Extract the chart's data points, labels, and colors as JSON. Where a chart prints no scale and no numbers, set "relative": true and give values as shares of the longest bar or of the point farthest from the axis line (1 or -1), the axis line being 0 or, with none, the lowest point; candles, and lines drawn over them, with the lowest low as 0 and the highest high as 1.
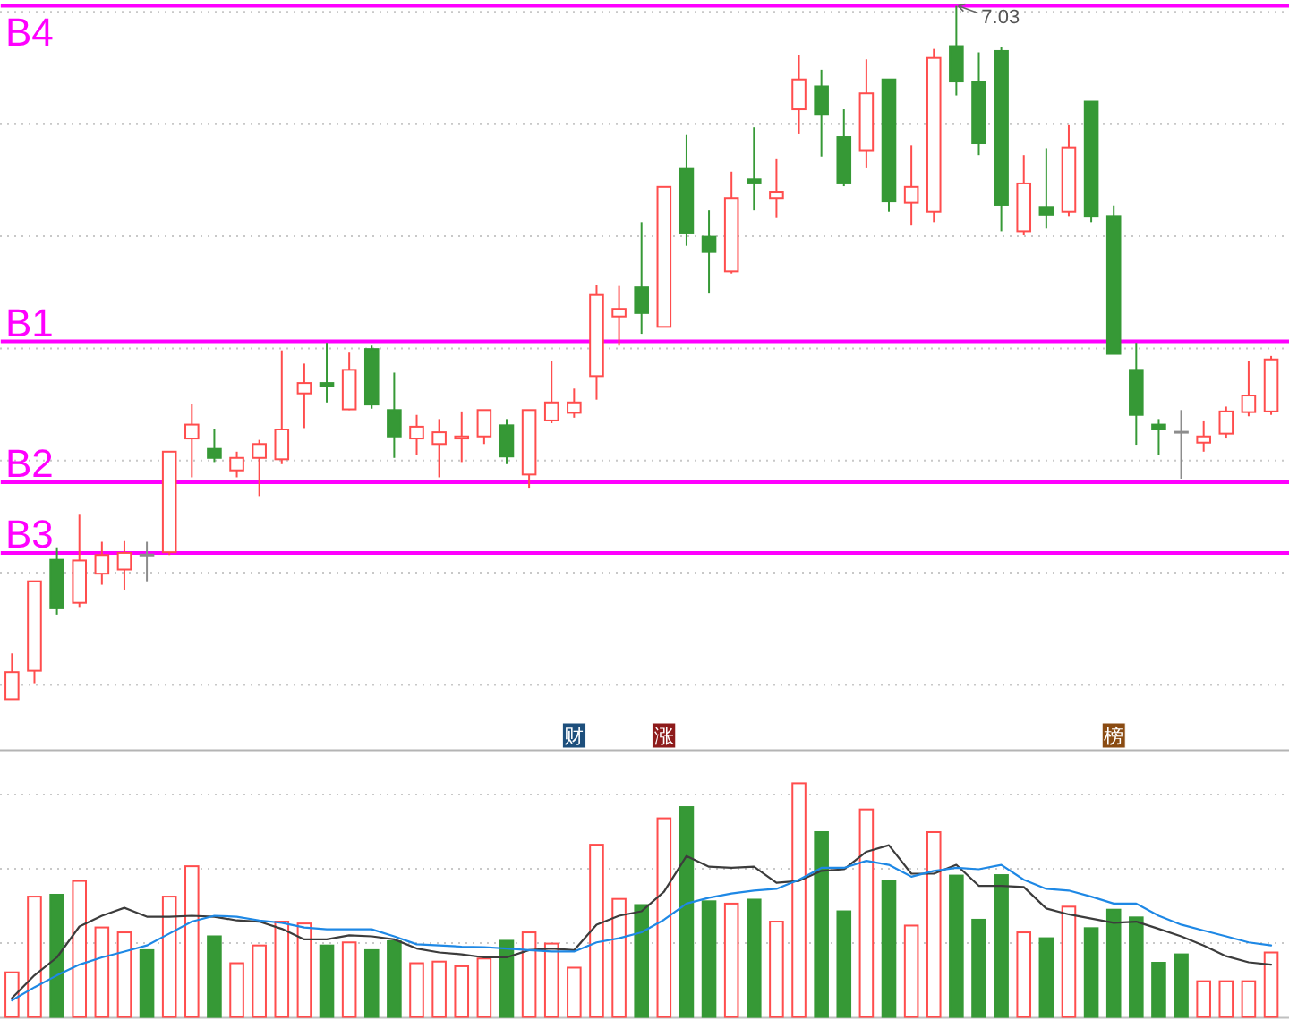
{
  "chart_data": [
    {
      "type": "candlestick",
      "relative": true,
      "grid": "y",
      "categories": [
        null,
        null,
        null,
        null,
        null,
        null,
        null,
        null,
        null,
        null,
        null,
        null,
        null,
        null,
        null,
        null,
        null,
        null,
        null,
        null,
        null,
        null,
        null,
        null,
        null,
        null,
        null,
        null,
        null,
        null,
        null,
        null,
        null,
        null,
        null,
        null,
        null,
        null,
        null,
        null,
        null,
        null,
        null,
        null,
        null,
        null,
        null,
        null,
        null,
        null,
        null,
        null,
        null,
        null,
        null,
        null,
        null
      ],
      "ohlc": [
        [
          0,
          0.066,
          0,
          0.039
        ],
        [
          0.041,
          0.17,
          0.023,
          0.17
        ],
        [
          0.201,
          0.219,
          0.122,
          0.131
        ],
        [
          0.139,
          0.266,
          0.133,
          0.2
        ],
        [
          0.181,
          0.227,
          0.165,
          0.208
        ],
        [
          0.187,
          0.228,
          0.158,
          0.211
        ],
        [
          0.208,
          0.227,
          0.17,
          0.208
        ],
        [
          0.212,
          0.357,
          0.208,
          0.357
        ],
        [
          0.376,
          0.426,
          0.32,
          0.396
        ],
        [
          0.361,
          0.389,
          0.342,
          0.348
        ],
        [
          0.33,
          0.357,
          0.32,
          0.348
        ],
        [
          0.348,
          0.374,
          0.293,
          0.368
        ],
        [
          0.346,
          0.503,
          0.339,
          0.389
        ],
        [
          0.441,
          0.484,
          0.391,
          0.456
        ],
        [
          0.456,
          0.514,
          0.428,
          0.451
        ],
        [
          0.418,
          0.501,
          0.417,
          0.475
        ],
        [
          0.505,
          0.51,
          0.419,
          0.425
        ],
        [
          0.417,
          0.471,
          0.348,
          0.379
        ],
        [
          0.376,
          0.41,
          0.352,
          0.393
        ],
        [
          0.368,
          0.404,
          0.32,
          0.385
        ],
        [
          0.376,
          0.415,
          0.342,
          0.379
        ],
        [
          0.379,
          0.417,
          0.368,
          0.417
        ],
        [
          0.395,
          0.404,
          0.339,
          0.35
        ],
        [
          0.324,
          0.417,
          0.305,
          0.417
        ],
        [
          0.402,
          0.488,
          0.398,
          0.428
        ],
        [
          0.413,
          0.448,
          0.406,
          0.428
        ],
        [
          0.466,
          0.597,
          0.432,
          0.583
        ],
        [
          0.552,
          0.596,
          0.51,
          0.563
        ],
        [
          0.594,
          0.688,
          0.527,
          0.557
        ],
        [
          0.537,
          0.739,
          0.537,
          0.739
        ],
        [
          0.765,
          0.814,
          0.654,
          0.673
        ],
        [
          0.667,
          0.705,
          0.585,
          0.645
        ],
        [
          0.617,
          0.761,
          0.614,
          0.723
        ],
        [
          0.75,
          0.825,
          0.705,
          0.744
        ],
        [
          0.723,
          0.779,
          0.694,
          0.731
        ],
        [
          0.851,
          0.929,
          0.815,
          0.894
        ],
        [
          0.884,
          0.908,
          0.783,
          0.843
        ],
        [
          0.811,
          0.851,
          0.74,
          0.744
        ],
        [
          0.791,
          0.923,
          0.766,
          0.874
        ],
        [
          0.894,
          0.894,
          0.703,
          0.718
        ],
        [
          0.716,
          0.799,
          0.683,
          0.739
        ],
        [
          0.703,
          0.938,
          0.688,
          0.925
        ],
        [
          0.942,
          1,
          0.871,
          0.891
        ],
        [
          0.891,
          0.933,
          0.785,
          0.802
        ],
        [
          0.935,
          0.941,
          0.675,
          0.713
        ],
        [
          0.675,
          0.785,
          0.669,
          0.744
        ],
        [
          0.71,
          0.795,
          0.679,
          0.699
        ],
        [
          0.703,
          0.828,
          0.697,
          0.796
        ],
        [
          0.862,
          0.862,
          0.688,
          0.696
        ],
        [
          0.697,
          0.712,
          0.498,
          0.498
        ],
        [
          0.475,
          0.514,
          0.367,
          0.41
        ],
        [
          0.396,
          0.404,
          0.352,
          0.389
        ],
        [
          0.385,
          0.417,
          0.318,
          0.385
        ],
        [
          0.37,
          0.402,
          0.357,
          0.379
        ],
        [
          0.383,
          0.422,
          0.376,
          0.415
        ],
        [
          0.414,
          0.488,
          0.408,
          0.438
        ],
        [
          0.415,
          0.495,
          0.41,
          0.49
        ]
      ],
      "colors": [
        "#ff4d4d",
        "#ff4d4d",
        "#369936",
        "#ff4d4d",
        "#ff4d4d",
        "#ff4d4d",
        "#8c8c8c",
        "#ff4d4d",
        "#ff4d4d",
        "#369936",
        "#ff4d4d",
        "#ff4d4d",
        "#ff4d4d",
        "#ff4d4d",
        "#369936",
        "#ff4d4d",
        "#369936",
        "#369936",
        "#ff4d4d",
        "#ff4d4d",
        "#ff4d4d",
        "#ff4d4d",
        "#369936",
        "#ff4d4d",
        "#ff4d4d",
        "#ff4d4d",
        "#ff4d4d",
        "#ff4d4d",
        "#369936",
        "#ff4d4d",
        "#369936",
        "#369936",
        "#ff4d4d",
        "#369936",
        "#ff4d4d",
        "#ff4d4d",
        "#369936",
        "#369936",
        "#ff4d4d",
        "#369936",
        "#ff4d4d",
        "#ff4d4d",
        "#369936",
        "#369936",
        "#369936",
        "#ff4d4d",
        "#369936",
        "#ff4d4d",
        "#369936",
        "#369936",
        "#369936",
        "#369936",
        "#8c8c8c",
        "#ff4d4d",
        "#ff4d4d",
        "#ff4d4d",
        "#ff4d4d"
      ],
      "ref_lines": [
        {
          "axis": "y",
          "value": 1,
          "label": "B4",
          "color": "#ff00ff"
        },
        {
          "axis": "y",
          "value": 0.516,
          "label": "B1",
          "color": "#ff00ff"
        },
        {
          "axis": "y",
          "value": 0.313,
          "label": "B2",
          "color": "#ff00ff"
        },
        {
          "axis": "y",
          "value": 0.211,
          "label": "B3",
          "color": "#ff00ff"
        }
      ],
      "annotations": [
        {
          "text": "7.03",
          "y": 1
        },
        "财",
        "涨",
        "榜"
      ]
    },
    {
      "type": "bar",
      "relative": true,
      "grid": "y",
      "categories": [
        null,
        null,
        null,
        null,
        null,
        null,
        null,
        null,
        null,
        null,
        null,
        null,
        null,
        null,
        null,
        null,
        null,
        null,
        null,
        null,
        null,
        null,
        null,
        null,
        null,
        null,
        null,
        null,
        null,
        null,
        null,
        null,
        null,
        null,
        null,
        null,
        null,
        null,
        null,
        null,
        null,
        null,
        null,
        null,
        null,
        null,
        null,
        null,
        null,
        null,
        null,
        null,
        null,
        null,
        null,
        null,
        null
      ],
      "series": [
        {
          "values": [
            0.191,
            0.515,
            0.523,
            0.582,
            0.383,
            0.362,
            0.286,
            0.515,
            0.645,
            0.345,
            0.23,
            0.306,
            0.408,
            0.4,
            0.306,
            0.319,
            0.286,
            0.324,
            0.23,
            0.237,
            0.217,
            0.25,
            0.326,
            0.362,
            0.314,
            0.211,
            0.737,
            0.505,
            0.479,
            0.85,
            0.898,
            0.495,
            0.485,
            0.502,
            0.408,
            1,
            0.791,
            0.452,
            0.888,
            0.582,
            0.391,
            0.791,
            0.605,
            0.416,
            0.607,
            0.362,
            0.337,
            0.472,
            0.38,
            0.459,
            0.426,
            0.232,
            0.268,
            0.153,
            0.153,
            0.153,
            0.276
          ],
          "colors": [
            "#ff4d4d",
            "#ff4d4d",
            "#369936",
            "#ff4d4d",
            "#ff4d4d",
            "#ff4d4d",
            "#369936",
            "#ff4d4d",
            "#ff4d4d",
            "#369936",
            "#ff4d4d",
            "#ff4d4d",
            "#ff4d4d",
            "#ff4d4d",
            "#369936",
            "#ff4d4d",
            "#369936",
            "#369936",
            "#ff4d4d",
            "#ff4d4d",
            "#ff4d4d",
            "#ff4d4d",
            "#369936",
            "#ff4d4d",
            "#ff4d4d",
            "#ff4d4d",
            "#ff4d4d",
            "#ff4d4d",
            "#369936",
            "#ff4d4d",
            "#369936",
            "#369936",
            "#ff4d4d",
            "#369936",
            "#ff4d4d",
            "#ff4d4d",
            "#369936",
            "#369936",
            "#ff4d4d",
            "#369936",
            "#ff4d4d",
            "#ff4d4d",
            "#369936",
            "#369936",
            "#369936",
            "#ff4d4d",
            "#369936",
            "#ff4d4d",
            "#369936",
            "#369936",
            "#369936",
            "#369936",
            "#369936",
            "#ff4d4d",
            "#ff4d4d",
            "#ff4d4d",
            "#ff4d4d"
          ]
        },
        {
          "type": "line",
          "color": "#3c3c3c",
          "values": [
            0.081,
            0.178,
            0.255,
            0.387,
            0.433,
            0.467,
            0.429,
            0.429,
            0.433,
            0.429,
            0.413,
            0.408,
            0.377,
            0.332,
            0.332,
            0.349,
            0.345,
            0.332,
            0.293,
            0.276,
            0.268,
            0.255,
            0.255,
            0.286,
            0.293,
            0.286,
            0.395,
            0.433,
            0.452,
            0.536,
            0.689,
            0.643,
            0.638,
            0.643,
            0.574,
            0.582,
            0.625,
            0.632,
            0.707,
            0.735,
            0.613,
            0.613,
            0.651,
            0.561,
            0.561,
            0.556,
            0.464,
            0.439,
            0.421,
            0.403,
            0.408,
            0.377,
            0.345,
            0.306,
            0.26,
            0.234,
            0.224
          ]
        },
        {
          "type": "line",
          "color": "#1e88e5",
          "values": [
            0.071,
            0.127,
            0.178,
            0.224,
            0.255,
            0.28,
            0.306,
            0.357,
            0.408,
            0.433,
            0.429,
            0.413,
            0.403,
            0.383,
            0.375,
            0.375,
            0.375,
            0.345,
            0.311,
            0.306,
            0.301,
            0.299,
            0.293,
            0.286,
            0.28,
            0.28,
            0.319,
            0.337,
            0.362,
            0.416,
            0.485,
            0.51,
            0.528,
            0.541,
            0.548,
            0.587,
            0.638,
            0.638,
            0.668,
            0.651,
            0.6,
            0.625,
            0.638,
            0.632,
            0.651,
            0.587,
            0.548,
            0.541,
            0.515,
            0.485,
            0.485,
            0.433,
            0.395,
            0.37,
            0.345,
            0.319,
            0.306
          ]
        }
      ]
    }
  ]
}
